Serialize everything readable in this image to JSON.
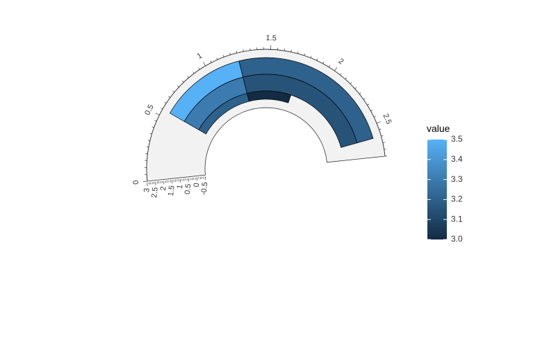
{
  "chart_data": {
    "type": "heatmap",
    "coord": "polar-arc",
    "x_ticks": [
      "0",
      "0.5",
      "1",
      "1.5",
      "2",
      "2.5"
    ],
    "y_ticks": [
      "-0.5",
      "0",
      "0.5",
      "1",
      "1.5",
      "2",
      "2.5",
      "3"
    ],
    "xlim": [
      0,
      2.75
    ],
    "ylim": [
      -0.5,
      3
    ],
    "tiles": [
      {
        "x0": 0.55,
        "x1": 1.25,
        "y0": 1.5,
        "y1": 2.5,
        "value": 3.5
      },
      {
        "x0": 0.55,
        "x1": 1.25,
        "y0": 0.5,
        "y1": 1.5,
        "value": 3.3
      },
      {
        "x0": 0.55,
        "x1": 1.25,
        "y0": 0,
        "y1": 0.5,
        "value": 3.2
      },
      {
        "x0": 1.25,
        "x1": 2.6,
        "y0": 1.5,
        "y1": 2.5,
        "value": 3.2
      },
      {
        "x0": 1.25,
        "x1": 2.6,
        "y0": 0.5,
        "y1": 1.5,
        "value": 3.15
      },
      {
        "x0": 1.25,
        "x1": 1.75,
        "y0": 0,
        "y1": 0.5,
        "value": 3.0
      }
    ],
    "legend": {
      "title": "value",
      "ticks": [
        "3.0",
        "3.1",
        "3.2",
        "3.3",
        "3.4",
        "3.5"
      ],
      "min": 3.0,
      "max": 3.5,
      "low_color": "#132B43",
      "high_color": "#56B1F7"
    },
    "panel_color": "#F2F2F2"
  }
}
